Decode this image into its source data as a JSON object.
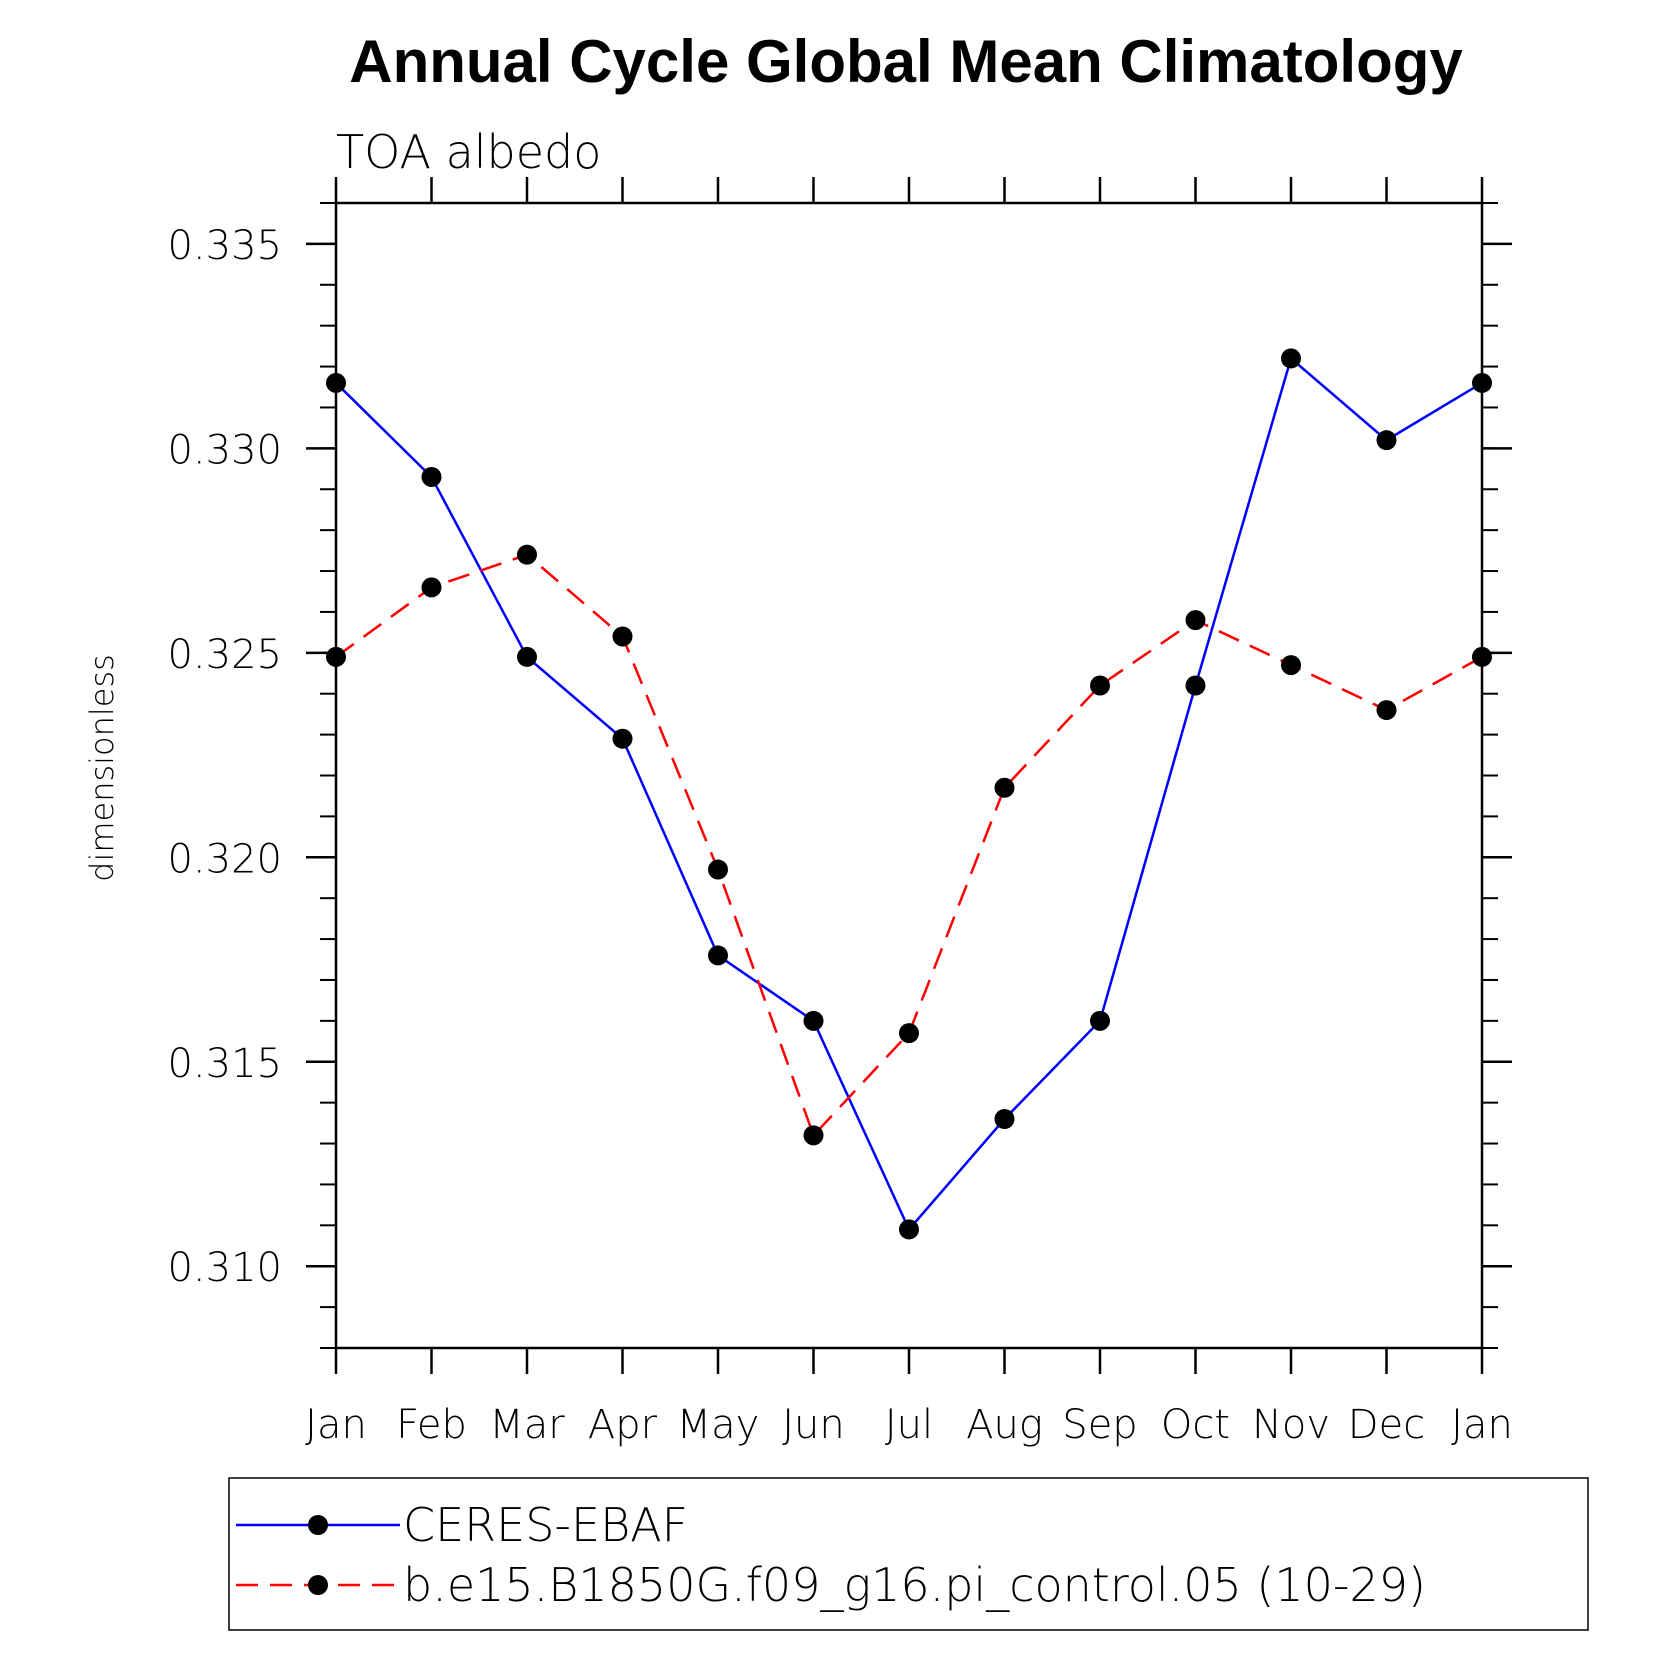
{
  "chart_data": {
    "type": "line",
    "title": "Annual Cycle Global Mean Climatology",
    "subtitle": "TOA albedo",
    "xlabel": "",
    "ylabel": "dimensionless",
    "categories": [
      "Jan",
      "Feb",
      "Mar",
      "Apr",
      "May",
      "Jun",
      "Jul",
      "Aug",
      "Sep",
      "Oct",
      "Nov",
      "Dec",
      "Jan"
    ],
    "ylim": [
      0.308,
      0.336
    ],
    "yticks": [
      0.31,
      0.315,
      0.32,
      0.325,
      0.33,
      0.335
    ],
    "ytick_labels": [
      "0.310",
      "0.315",
      "0.320",
      "0.325",
      "0.330",
      "0.335"
    ],
    "grid": false,
    "legend_position": "bottom",
    "series": [
      {
        "name": "CERES-EBAF",
        "color": "#0000ff",
        "line_style": "solid",
        "marker": "filled-circle",
        "values": [
          0.3316,
          0.3293,
          0.3249,
          0.3229,
          0.3176,
          0.316,
          0.3109,
          0.3136,
          0.316,
          0.3242,
          0.3322,
          0.3302,
          0.3316
        ]
      },
      {
        "name": "b.e15.B1850G.f09_g16.pi_control.05 (10-29)",
        "color": "#ff0000",
        "line_style": "dashed",
        "marker": "filled-circle",
        "values": [
          0.3249,
          0.3266,
          0.3274,
          0.3254,
          0.3197,
          0.3132,
          0.3157,
          0.3217,
          0.3242,
          0.3258,
          0.3247,
          0.3236,
          0.3249
        ]
      }
    ]
  }
}
